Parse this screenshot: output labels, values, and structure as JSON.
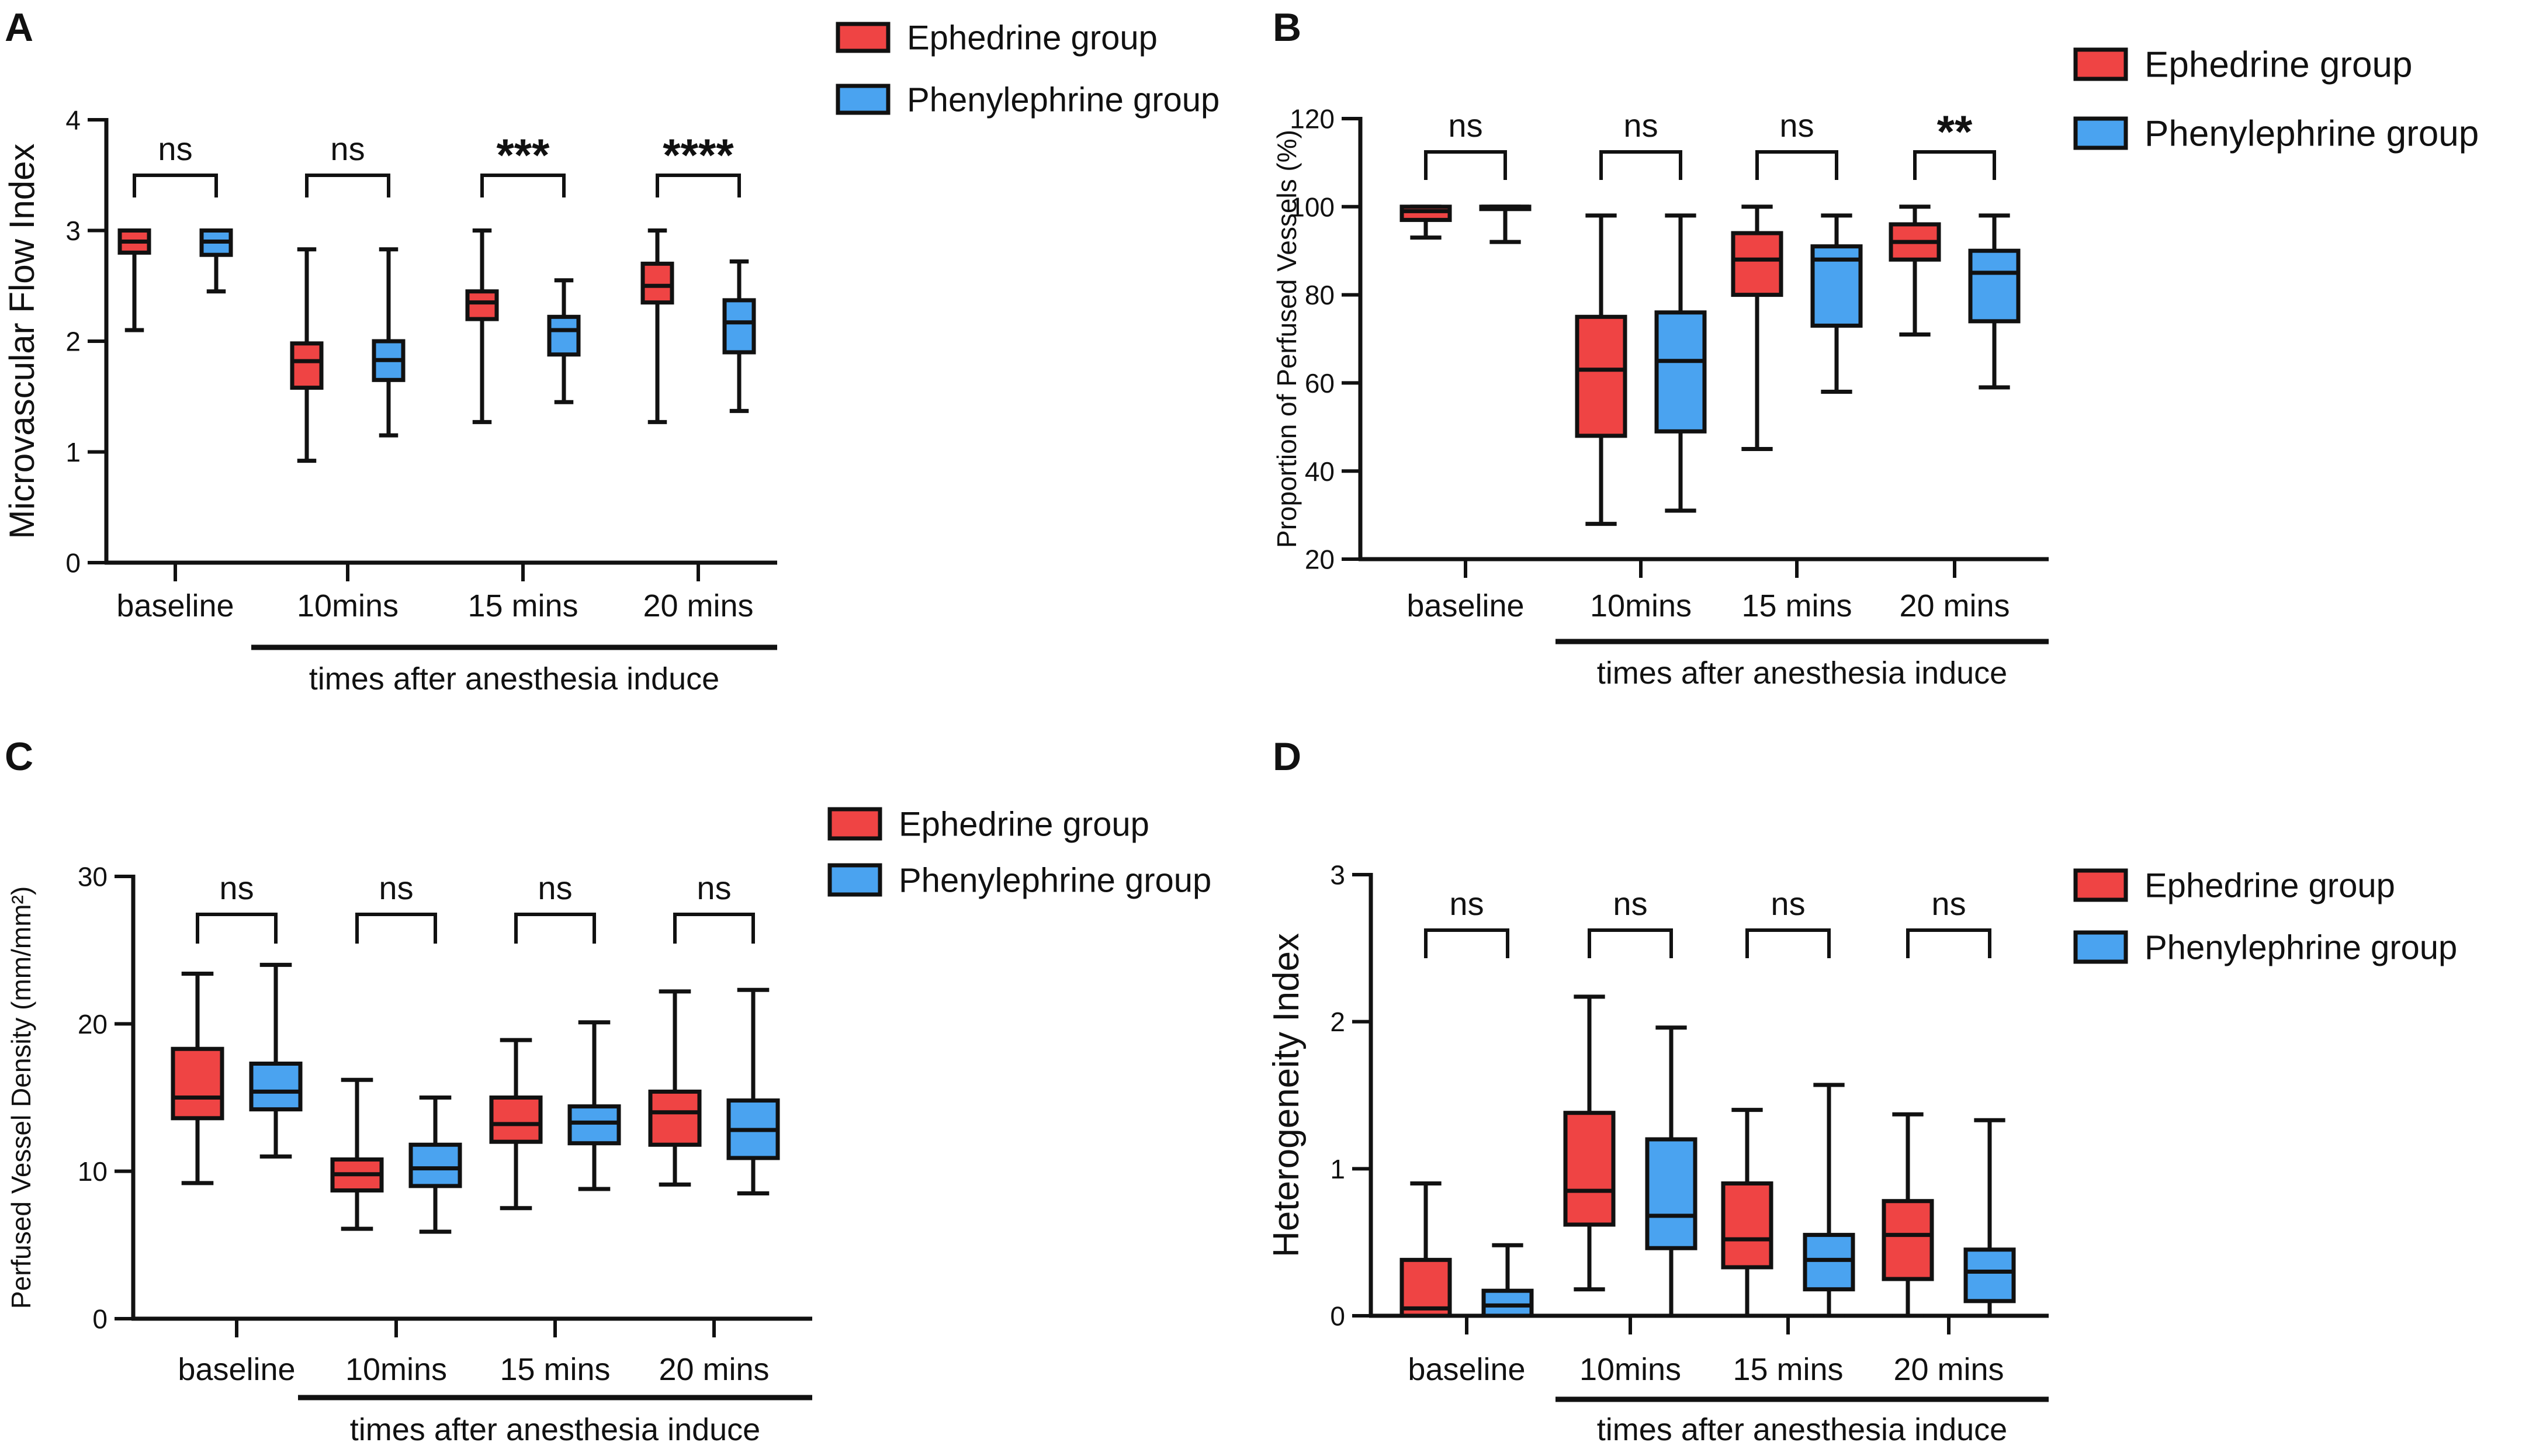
{
  "colors": {
    "ephedrine": "#ef4444",
    "phenylephrine": "#4aa3f0",
    "ink": "#111111"
  },
  "panels": [
    {
      "letter": "A",
      "ylabel": "Microvascular Flow Index",
      "ylim": [
        0,
        4
      ],
      "yticks": [
        "0",
        "1",
        "2",
        "3",
        "4"
      ],
      "categories": [
        "baseline",
        "10mins",
        "15 mins",
        "20 mins"
      ],
      "xgroup_label": "times after anesthesia induce",
      "significance": [
        "ns",
        "ns",
        "***",
        "****"
      ],
      "legend": [
        "Ephedrine  group",
        "Phenylephrine group"
      ]
    },
    {
      "letter": "B",
      "ylabel": "Proportion of Perfused Vessels (%)",
      "ylim": [
        20,
        120
      ],
      "yticks": [
        "20",
        "40",
        "60",
        "80",
        "100",
        "120"
      ],
      "categories": [
        "baseline",
        "10mins",
        "15 mins",
        "20 mins"
      ],
      "xgroup_label": "times after anesthesia induce",
      "significance": [
        "ns",
        "ns",
        "ns",
        "**"
      ],
      "legend": [
        "Ephedrine  group",
        "Phenylephrine group"
      ]
    },
    {
      "letter": "C",
      "ylabel": "Perfused Vessel Density (mm/mm²)",
      "ylim": [
        0,
        30
      ],
      "yticks": [
        "0",
        "10",
        "20",
        "30"
      ],
      "categories": [
        "baseline",
        "10mins",
        "15 mins",
        "20 mins"
      ],
      "xgroup_label": "times after anesthesia induce",
      "significance": [
        "ns",
        "ns",
        "ns",
        "ns"
      ],
      "legend": [
        "Ephedrine  group",
        "Phenylephrine group"
      ]
    },
    {
      "letter": "D",
      "ylabel": "Heterogeneity Index",
      "ylim": [
        0,
        3
      ],
      "yticks": [
        "0",
        "1",
        "2",
        "3"
      ],
      "categories": [
        "baseline",
        "10mins",
        "15 mins",
        "20 mins"
      ],
      "xgroup_label": "times after anesthesia induce",
      "significance": [
        "ns",
        "ns",
        "ns",
        "ns"
      ],
      "legend": [
        "Ephedrine  group",
        "Phenylephrine group"
      ]
    }
  ],
  "chart_data": [
    {
      "type": "box",
      "title": "A",
      "ylabel": "Microvascular Flow Index",
      "xlabel": "times after anesthesia induce",
      "ylim": [
        0,
        4
      ],
      "categories": [
        "baseline",
        "10mins",
        "15 mins",
        "20 mins"
      ],
      "series": [
        {
          "name": "Ephedrine group",
          "boxes": [
            {
              "min": 2.1,
              "q1": 2.8,
              "median": 2.9,
              "q3": 3.0,
              "max": 3.0
            },
            {
              "min": 0.92,
              "q1": 1.58,
              "median": 1.82,
              "q3": 1.98,
              "max": 2.83
            },
            {
              "min": 1.27,
              "q1": 2.2,
              "median": 2.35,
              "q3": 2.45,
              "max": 3.0
            },
            {
              "min": 1.27,
              "q1": 2.35,
              "median": 2.5,
              "q3": 2.7,
              "max": 3.0
            }
          ]
        },
        {
          "name": "Phenylephrine group",
          "boxes": [
            {
              "min": 2.45,
              "q1": 2.78,
              "median": 2.9,
              "q3": 3.0,
              "max": 3.0
            },
            {
              "min": 1.15,
              "q1": 1.65,
              "median": 1.83,
              "q3": 2.0,
              "max": 2.83
            },
            {
              "min": 1.45,
              "q1": 1.88,
              "median": 2.1,
              "q3": 2.22,
              "max": 2.55
            },
            {
              "min": 1.37,
              "q1": 1.9,
              "median": 2.17,
              "q3": 2.37,
              "max": 2.72
            }
          ]
        }
      ]
    },
    {
      "type": "box",
      "title": "B",
      "ylabel": "Proportion of Perfused Vessels (%)",
      "xlabel": "times after anesthesia induce",
      "ylim": [
        20,
        120
      ],
      "categories": [
        "baseline",
        "10mins",
        "15 mins",
        "20 mins"
      ],
      "series": [
        {
          "name": "Ephedrine group",
          "boxes": [
            {
              "min": 93,
              "q1": 97,
              "median": 99,
              "q3": 100,
              "max": 100
            },
            {
              "min": 28,
              "q1": 48,
              "median": 63,
              "q3": 75,
              "max": 98
            },
            {
              "min": 45,
              "q1": 80,
              "median": 88,
              "q3": 94,
              "max": 100
            },
            {
              "min": 71,
              "q1": 88,
              "median": 92,
              "q3": 96,
              "max": 100
            }
          ]
        },
        {
          "name": "Phenylephrine group",
          "boxes": [
            {
              "min": 92,
              "q1": 100,
              "median": 100,
              "q3": 100,
              "max": 100
            },
            {
              "min": 31,
              "q1": 49,
              "median": 65,
              "q3": 76,
              "max": 98
            },
            {
              "min": 58,
              "q1": 73,
              "median": 88,
              "q3": 91,
              "max": 98
            },
            {
              "min": 59,
              "q1": 74,
              "median": 85,
              "q3": 90,
              "max": 98
            }
          ]
        }
      ]
    },
    {
      "type": "box",
      "title": "C",
      "ylabel": "Perfused Vessel Density (mm/mm²)",
      "xlabel": "times after anesthesia induce",
      "ylim": [
        0,
        30
      ],
      "categories": [
        "baseline",
        "10mins",
        "15 mins",
        "20 mins"
      ],
      "series": [
        {
          "name": "Ephedrine group",
          "boxes": [
            {
              "min": 9.2,
              "q1": 13.6,
              "median": 15.0,
              "q3": 18.3,
              "max": 23.4
            },
            {
              "min": 6.1,
              "q1": 8.7,
              "median": 9.8,
              "q3": 10.8,
              "max": 16.2
            },
            {
              "min": 7.5,
              "q1": 12.0,
              "median": 13.2,
              "q3": 15.0,
              "max": 18.9
            },
            {
              "min": 9.1,
              "q1": 11.8,
              "median": 14.0,
              "q3": 15.4,
              "max": 22.2
            }
          ]
        },
        {
          "name": "Phenylephrine group",
          "boxes": [
            {
              "min": 11.0,
              "q1": 14.2,
              "median": 15.4,
              "q3": 17.3,
              "max": 24.0
            },
            {
              "min": 5.9,
              "q1": 9.0,
              "median": 10.2,
              "q3": 11.8,
              "max": 15.0
            },
            {
              "min": 8.8,
              "q1": 11.9,
              "median": 13.3,
              "q3": 14.4,
              "max": 20.1
            },
            {
              "min": 8.5,
              "q1": 10.9,
              "median": 12.8,
              "q3": 14.8,
              "max": 22.3
            }
          ]
        }
      ]
    },
    {
      "type": "box",
      "title": "D",
      "ylabel": "Heterogeneity Index",
      "xlabel": "times after anesthesia induce",
      "ylim": [
        0,
        3
      ],
      "categories": [
        "baseline",
        "10mins",
        "15 mins",
        "20 mins"
      ],
      "series": [
        {
          "name": "Ephedrine group",
          "boxes": [
            {
              "min": 0.0,
              "q1": 0.0,
              "median": 0.05,
              "q3": 0.38,
              "max": 0.9
            },
            {
              "min": 0.18,
              "q1": 0.62,
              "median": 0.85,
              "q3": 1.38,
              "max": 2.17
            },
            {
              "min": 0.0,
              "q1": 0.33,
              "median": 0.52,
              "q3": 0.9,
              "max": 1.4
            },
            {
              "min": 0.0,
              "q1": 0.25,
              "median": 0.55,
              "q3": 0.78,
              "max": 1.37
            }
          ]
        },
        {
          "name": "Phenylephrine group",
          "boxes": [
            {
              "min": 0.0,
              "q1": 0.0,
              "median": 0.07,
              "q3": 0.17,
              "max": 0.48
            },
            {
              "min": 0.0,
              "q1": 0.46,
              "median": 0.68,
              "q3": 1.2,
              "max": 1.96
            },
            {
              "min": 0.0,
              "q1": 0.18,
              "median": 0.38,
              "q3": 0.55,
              "max": 1.57
            },
            {
              "min": 0.0,
              "q1": 0.1,
              "median": 0.3,
              "q3": 0.45,
              "max": 1.33
            }
          ]
        }
      ]
    }
  ]
}
